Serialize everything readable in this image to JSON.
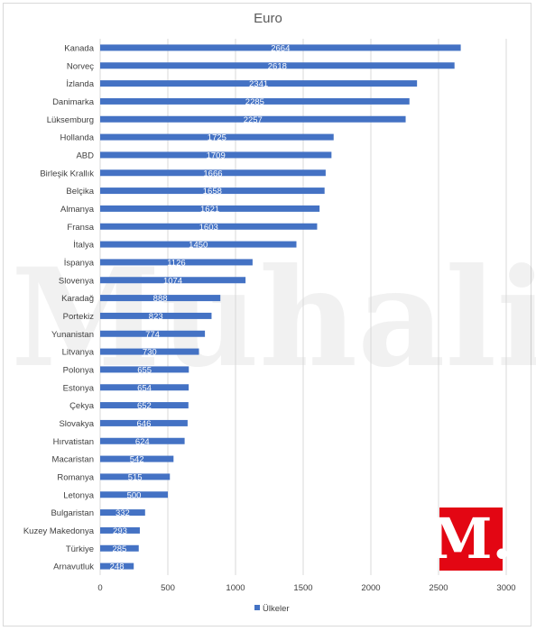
{
  "chart_data": {
    "type": "bar",
    "orientation": "horizontal",
    "title": "Euro",
    "categories": [
      "Kanada",
      "Norveç",
      "İzlanda",
      "Danimarka",
      "Lüksemburg",
      "Hollanda",
      "ABD",
      "Birleşik Krallık",
      "Belçika",
      "Almanya",
      "Fransa",
      "İtalya",
      "İspanya",
      "Slovenya",
      "Karadağ",
      "Portekiz",
      "Yunanistan",
      "Litvanya",
      "Polonya",
      "Estonya",
      "Çekya",
      "Slovakya",
      "Hırvatistan",
      "Macaristan",
      "Romanya",
      "Letonya",
      "Bulgaristan",
      "Kuzey Makedonya",
      "Türkiye",
      "Arnavutluk"
    ],
    "series": [
      {
        "name": "Ülkeler",
        "values": [
          2664,
          2618,
          2341,
          2285,
          2257,
          1725,
          1709,
          1666,
          1658,
          1621,
          1603,
          1450,
          1126,
          1074,
          888,
          823,
          774,
          730,
          655,
          654,
          652,
          646,
          624,
          542,
          515,
          500,
          332,
          293,
          285,
          248
        ]
      }
    ],
    "xlim": [
      0,
      3000
    ],
    "x_ticks": [
      0,
      500,
      1000,
      1500,
      2000,
      2500,
      3000
    ],
    "grid": true,
    "legend_position": "bottom",
    "bar_color": "#4472c4",
    "data_labels": true
  },
  "watermark": {
    "text": "Muhalif."
  },
  "logo": {
    "text": "M.",
    "color": "#e30613"
  }
}
